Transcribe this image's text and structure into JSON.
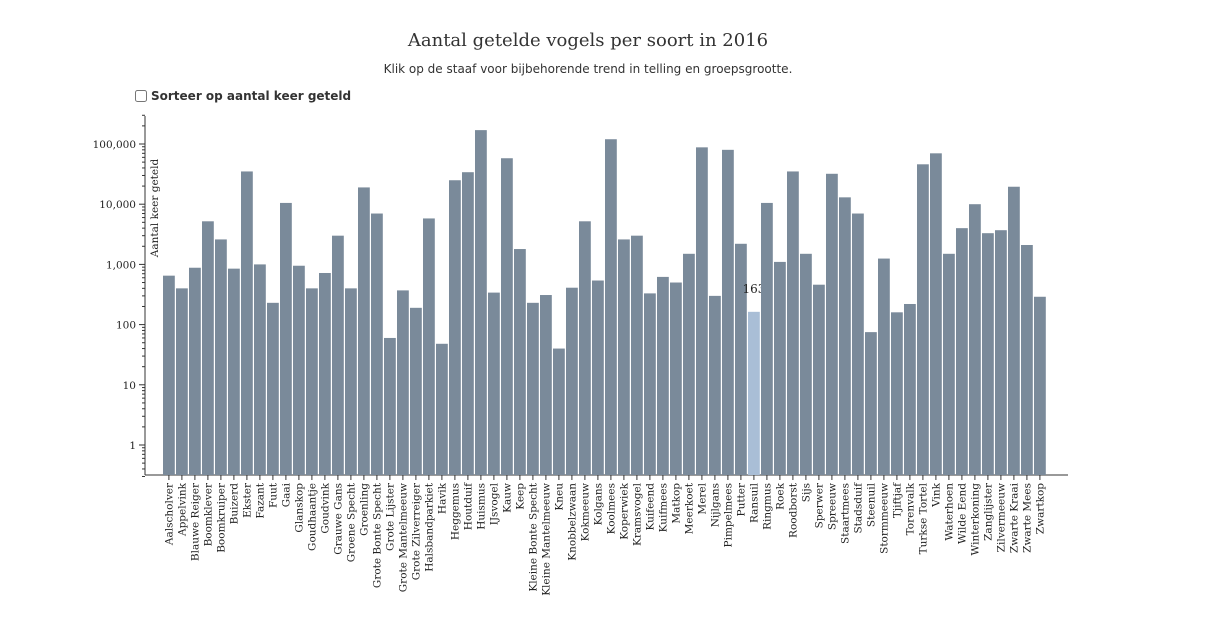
{
  "chart_data": {
    "type": "bar",
    "title": "Aantal getelde vogels per soort in 2016",
    "subtitle": "Klik op de staaf voor bijbehorende trend in telling en groepsgrootte.",
    "ylabel": "Aantal keer geteld",
    "yscale": "log",
    "ylim": [
      0.3,
      300000
    ],
    "yticks": [
      1,
      10,
      100,
      1000,
      10000,
      100000
    ],
    "ytick_labels": [
      "1",
      "10",
      "100",
      "1,000",
      "10,000",
      "100,000"
    ],
    "highlighted": {
      "category": "Ransuil",
      "value_label": "163"
    },
    "categories": [
      "Aalscholver",
      "Appelvink",
      "Blauwe Reiger",
      "Boomklever",
      "Boomkruiper",
      "Buizerd",
      "Ekster",
      "Fazant",
      "Fuut",
      "Gaai",
      "Glanskop",
      "Goudhaantje",
      "Goudvink",
      "Grauwe Gans",
      "Groene Specht",
      "Groenling",
      "Grote Bonte Specht",
      "Grote Lijster",
      "Grote Mantelmeeuw",
      "Grote Zilverreiger",
      "Halsbandparkiet",
      "Havik",
      "Heggemus",
      "Houtduif",
      "Huismus",
      "IJsvogel",
      "Kauw",
      "Keep",
      "Kleine Bonte Specht",
      "Kleine Mantelmeeuw",
      "Kneu",
      "Knobbelzwaan",
      "Kokmeeuw",
      "Kolgans",
      "Koolmees",
      "Koperwiek",
      "Kramsvogel",
      "Kuifeend",
      "Kuifmees",
      "Matkop",
      "Meerkoet",
      "Merel",
      "Nijlgans",
      "Pimpelmees",
      "Putter",
      "Ransuil",
      "Ringmus",
      "Roek",
      "Roodborst",
      "Sijs",
      "Sperwer",
      "Spreeuw",
      "Staartmees",
      "Stadsduif",
      "Steenuil",
      "Stormmeeuw",
      "Tjiftjaf",
      "Torenvalk",
      "Turkse Tortel",
      "Vink",
      "Waterhoen",
      "Wilde Eend",
      "Winterkoning",
      "Zanglijster",
      "Zilvermeeuw",
      "Zwarte Kraai",
      "Zwarte Mees",
      "Zwartkop"
    ],
    "values": [
      650,
      400,
      880,
      5200,
      2600,
      850,
      35000,
      1000,
      230,
      10500,
      950,
      400,
      720,
      3000,
      400,
      19000,
      7000,
      60,
      370,
      190,
      5800,
      48,
      25000,
      34000,
      170000,
      340,
      58000,
      1800,
      230,
      310,
      40,
      410,
      5200,
      540,
      120000,
      2600,
      3000,
      330,
      620,
      500,
      1500,
      88000,
      300,
      80000,
      2200,
      163,
      10500,
      1100,
      35000,
      1500,
      460,
      32000,
      13000,
      7000,
      75,
      1250,
      160,
      220,
      46000,
      70000,
      1500,
      4000,
      10000,
      3300,
      3700,
      19500,
      2100,
      290
    ]
  }
}
